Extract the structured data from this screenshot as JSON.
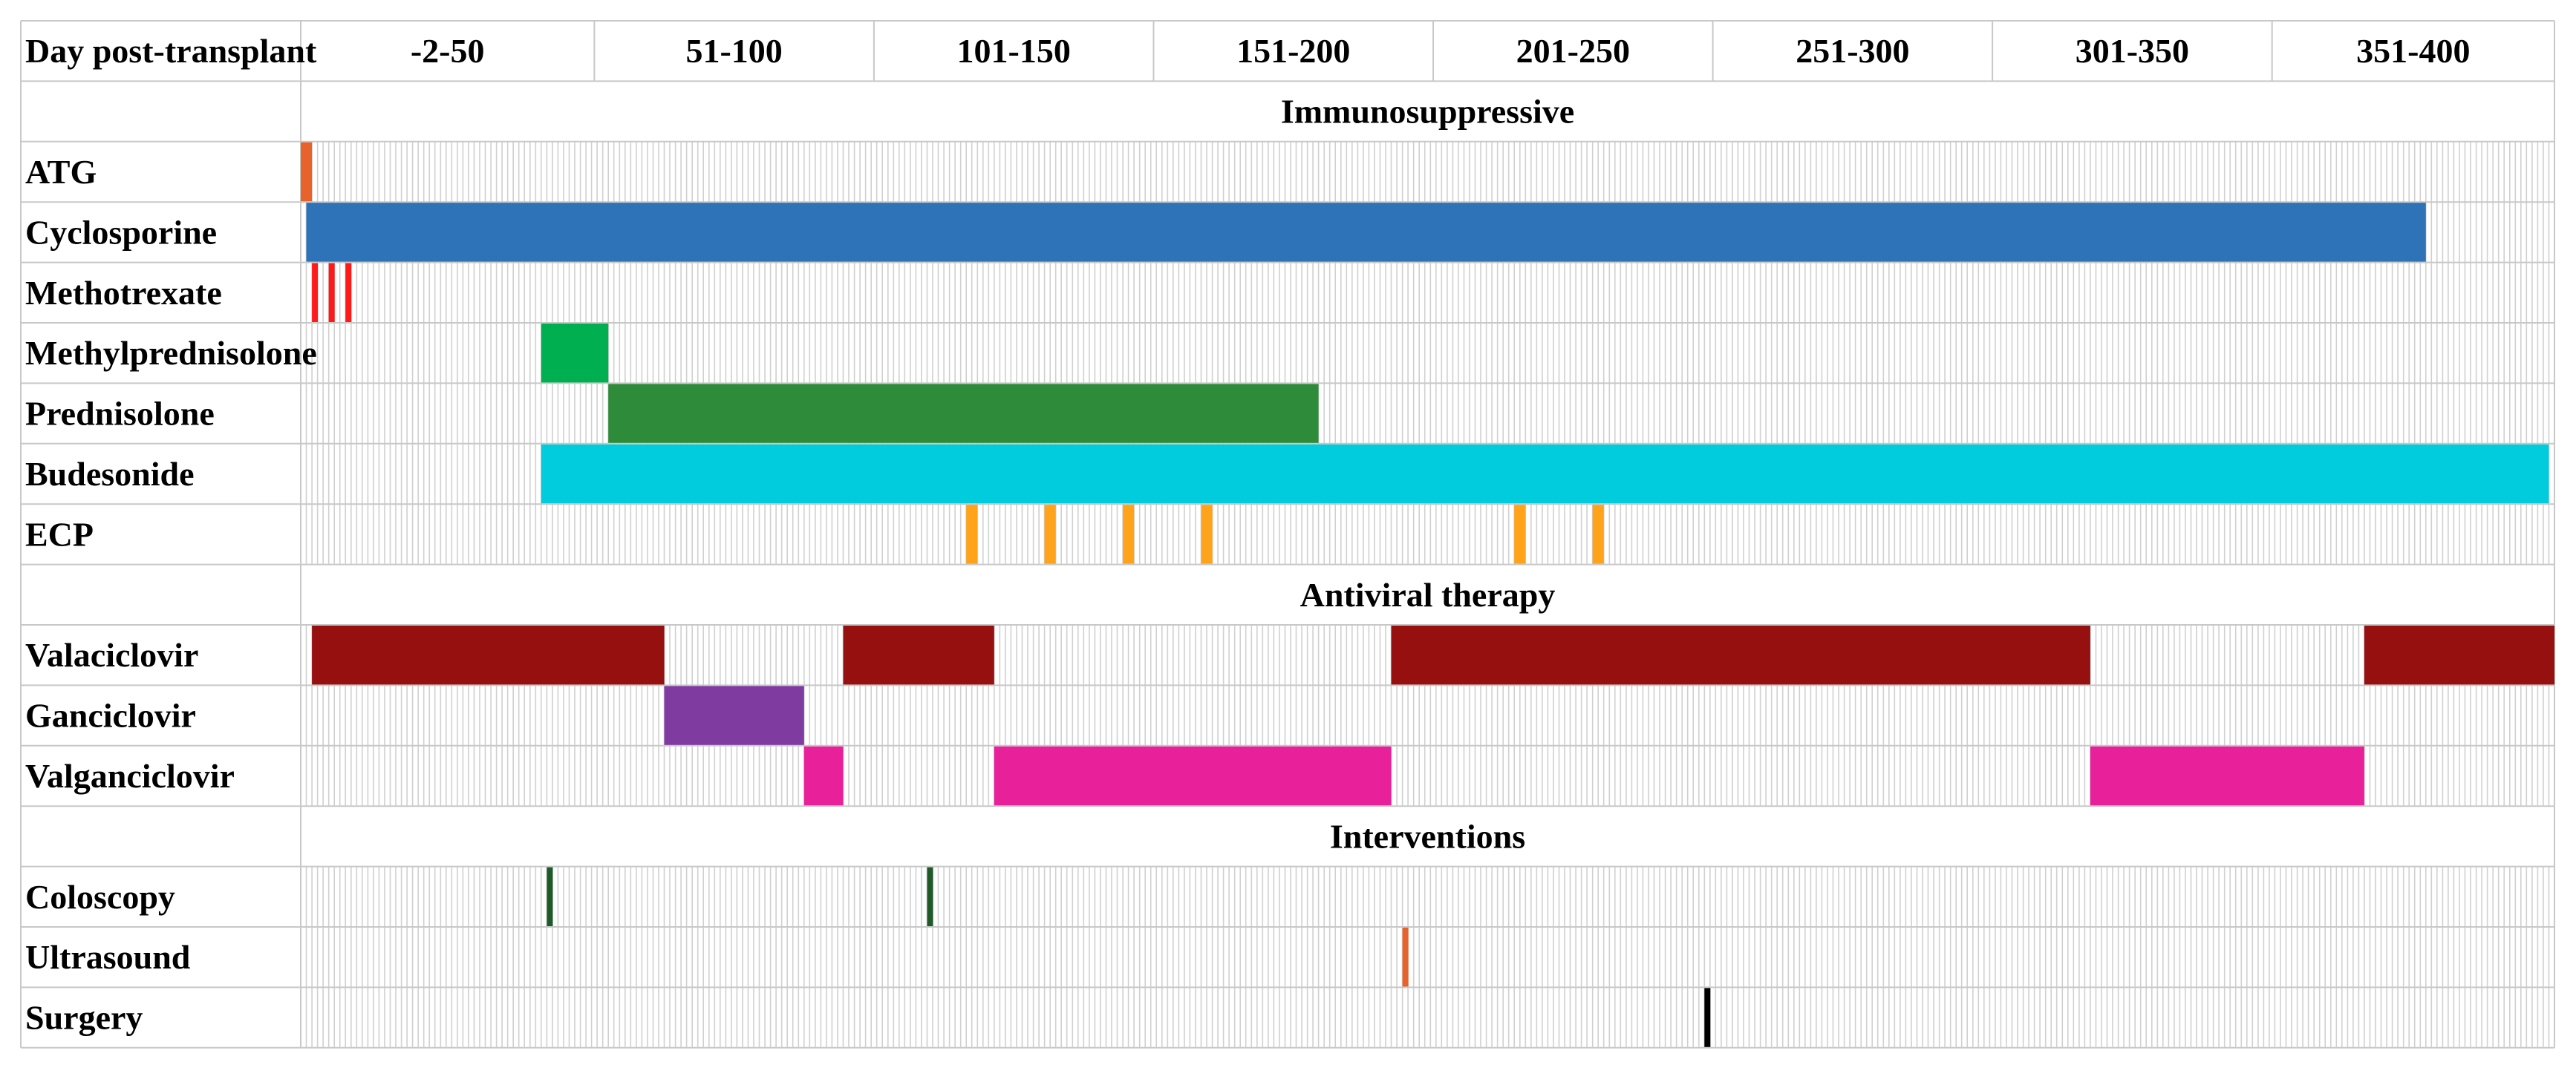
{
  "chart_data": {
    "type": "gantt",
    "header_label": "Day post-transplant",
    "day_start": -2,
    "day_end": 400,
    "periods": [
      {
        "label": "-2-50",
        "start": -2,
        "end": 50
      },
      {
        "label": "51-100",
        "start": 51,
        "end": 100
      },
      {
        "label": "101-150",
        "start": 101,
        "end": 150
      },
      {
        "label": "151-200",
        "start": 151,
        "end": 200
      },
      {
        "label": "201-250",
        "start": 201,
        "end": 250
      },
      {
        "label": "251-300",
        "start": 251,
        "end": 300
      },
      {
        "label": "301-350",
        "start": 301,
        "end": 350
      },
      {
        "label": "351-400",
        "start": 351,
        "end": 400
      }
    ],
    "sections": [
      {
        "title": "Immunosuppressive",
        "rows": [
          {
            "label": "ATG",
            "bars": [
              {
                "start": -2,
                "end": 0,
                "color": "#e8632b"
              }
            ]
          },
          {
            "label": "Cyclosporine",
            "bars": [
              {
                "start": -1,
                "end": 378,
                "color": "#2e72b8"
              }
            ]
          },
          {
            "label": "Methotrexate",
            "bars": [
              {
                "start": 0,
                "end": 1,
                "color": "#ff1a1a"
              },
              {
                "start": 3,
                "end": 4,
                "color": "#ff1a1a"
              },
              {
                "start": 6,
                "end": 7,
                "color": "#ff1a1a"
              }
            ]
          },
          {
            "label": "Methylprednisolone",
            "bars": [
              {
                "start": 41,
                "end": 53,
                "color": "#00b050"
              }
            ]
          },
          {
            "label": "Prednisolone",
            "bars": [
              {
                "start": 53,
                "end": 180,
                "color": "#2e8b3a"
              }
            ]
          },
          {
            "label": "Budesonide",
            "bars": [
              {
                "start": 41,
                "end": 400,
                "color": "#00ccdd"
              }
            ]
          },
          {
            "label": "ECP",
            "bars": [
              {
                "start": 117,
                "end": 119,
                "color": "#ffa31a"
              },
              {
                "start": 131,
                "end": 133,
                "color": "#ffa31a"
              },
              {
                "start": 145,
                "end": 147,
                "color": "#ffa31a"
              },
              {
                "start": 159,
                "end": 161,
                "color": "#ffa31a"
              },
              {
                "start": 215,
                "end": 217,
                "color": "#ffa31a"
              },
              {
                "start": 229,
                "end": 231,
                "color": "#ffa31a"
              }
            ]
          }
        ]
      },
      {
        "title": "Antiviral therapy",
        "rows": [
          {
            "label": "Valaciclovir",
            "bars": [
              {
                "start": 0,
                "end": 63,
                "color": "#961010"
              },
              {
                "start": 95,
                "end": 122,
                "color": "#961010"
              },
              {
                "start": 193,
                "end": 318,
                "color": "#961010"
              },
              {
                "start": 367,
                "end": 401,
                "color": "#961010"
              }
            ]
          },
          {
            "label": "Ganciclovir",
            "bars": [
              {
                "start": 63,
                "end": 88,
                "color": "#7f3b9f"
              }
            ]
          },
          {
            "label": "Valganciclovir",
            "bars": [
              {
                "start": 88,
                "end": 95,
                "color": "#e8219a"
              },
              {
                "start": 122,
                "end": 193,
                "color": "#e8219a"
              },
              {
                "start": 318,
                "end": 367,
                "color": "#e8219a"
              }
            ]
          }
        ]
      },
      {
        "title": "Interventions",
        "rows": [
          {
            "label": "Coloscopy",
            "bars": [
              {
                "start": 42,
                "end": 43,
                "color": "#1f5a28"
              },
              {
                "start": 110,
                "end": 111,
                "color": "#1f5a28"
              }
            ]
          },
          {
            "label": "Ultrasound",
            "bars": [
              {
                "start": 195,
                "end": 196,
                "color": "#e8632b"
              }
            ]
          },
          {
            "label": "Surgery",
            "bars": [
              {
                "start": 249,
                "end": 250,
                "color": "#000000"
              }
            ]
          }
        ]
      }
    ]
  }
}
